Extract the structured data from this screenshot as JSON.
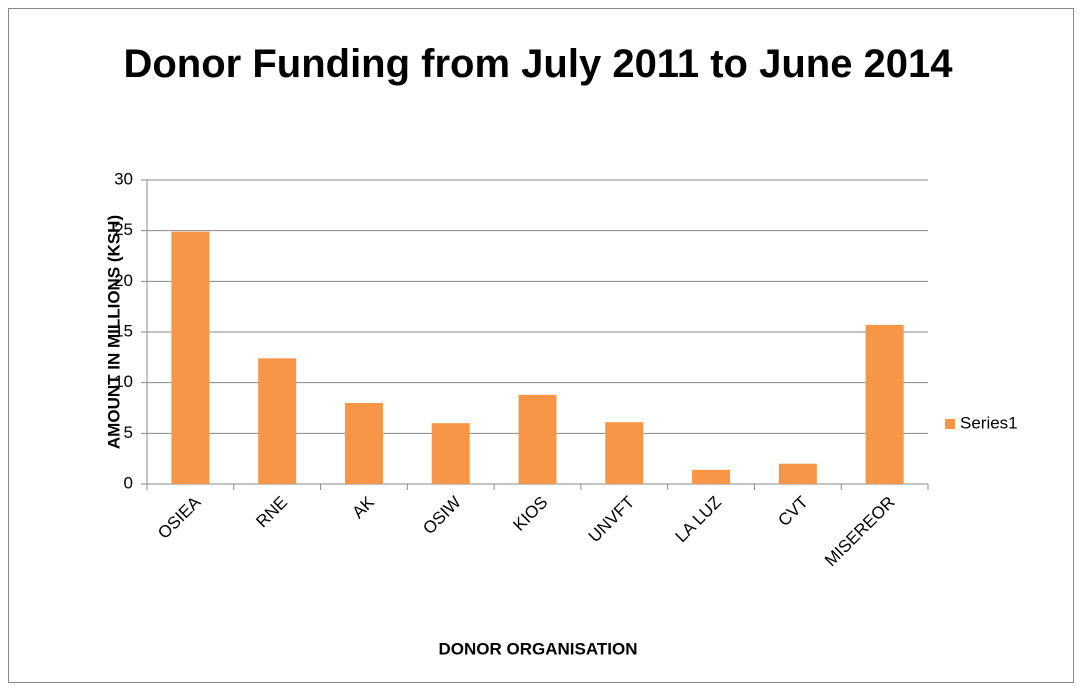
{
  "chart_data": {
    "type": "bar",
    "title": "Donor Funding from July 2011 to June 2014",
    "x_label": "DONOR ORGANISATION",
    "y_label": "AMOUNT IN MILLIONS (KSH)",
    "categories": [
      "OSIEA",
      "RNE",
      "AK",
      "OSIW",
      "KIOS",
      "UNVFT",
      "LA LUZ",
      "CVT",
      "MISEREOR"
    ],
    "series": [
      {
        "name": "Series1",
        "color": "#f79646",
        "values": [
          24.9,
          12.4,
          8,
          6,
          8.8,
          6.1,
          1.4,
          2,
          15.7
        ]
      }
    ],
    "ylim": [
      0,
      30
    ],
    "yticks": [
      0,
      5,
      10,
      15,
      20,
      25,
      30
    ],
    "grid": true,
    "legend": "right"
  }
}
